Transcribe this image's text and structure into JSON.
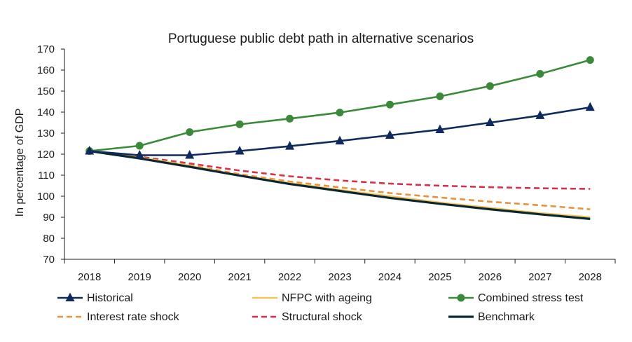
{
  "chart_data": {
    "type": "line",
    "title": "Portuguese public debt path in alternative scenarios",
    "xlabel": "",
    "ylabel": "In percentage of GDP",
    "x": [
      "2018",
      "2019",
      "2020",
      "2021",
      "2022",
      "2023",
      "2024",
      "2025",
      "2026",
      "2027",
      "2028"
    ],
    "ylim": [
      70,
      170
    ],
    "yticks": [
      "70",
      "80",
      "90",
      "100",
      "110",
      "120",
      "130",
      "140",
      "150",
      "160",
      "170"
    ],
    "grid": false,
    "legend_position": "bottom",
    "series": [
      {
        "name": "Historical",
        "color": "#0f2a5c",
        "style": "solid",
        "marker": "triangle",
        "values": [
          121.5,
          119.5,
          119.5,
          121.5,
          123.8,
          126.3,
          129.0,
          131.7,
          135.0,
          138.4,
          142.3
        ]
      },
      {
        "name": "NFPC with ageing",
        "color": "#f2c45a",
        "style": "solid",
        "marker": "none",
        "values": [
          121.5,
          118.5,
          114.5,
          110.0,
          106.3,
          103.0,
          100.0,
          97.0,
          94.5,
          92.0,
          90.0
        ]
      },
      {
        "name": "Combined stress test",
        "color": "#3a8a3a",
        "style": "solid",
        "marker": "circle",
        "values": [
          121.5,
          124.0,
          130.5,
          134.2,
          136.9,
          139.8,
          143.6,
          147.5,
          152.4,
          158.2,
          164.8
        ]
      },
      {
        "name": "Interest rate shock",
        "color": "#e8913e",
        "style": "dashed",
        "marker": "none",
        "values": [
          121.5,
          118.3,
          114.8,
          110.5,
          107.0,
          104.2,
          101.5,
          99.4,
          97.4,
          95.7,
          93.8
        ]
      },
      {
        "name": "Structural shock",
        "color": "#d6304a",
        "style": "dashed",
        "marker": "none",
        "values": [
          121.5,
          118.8,
          115.6,
          112.2,
          109.5,
          107.5,
          106.0,
          105.0,
          104.3,
          103.8,
          103.5
        ]
      },
      {
        "name": "Benchmark",
        "color": "#0a2630",
        "style": "solid",
        "marker": "none",
        "values": [
          121.5,
          118.0,
          114.0,
          109.8,
          105.8,
          102.5,
          99.2,
          96.4,
          93.8,
          91.4,
          89.2
        ]
      }
    ]
  }
}
